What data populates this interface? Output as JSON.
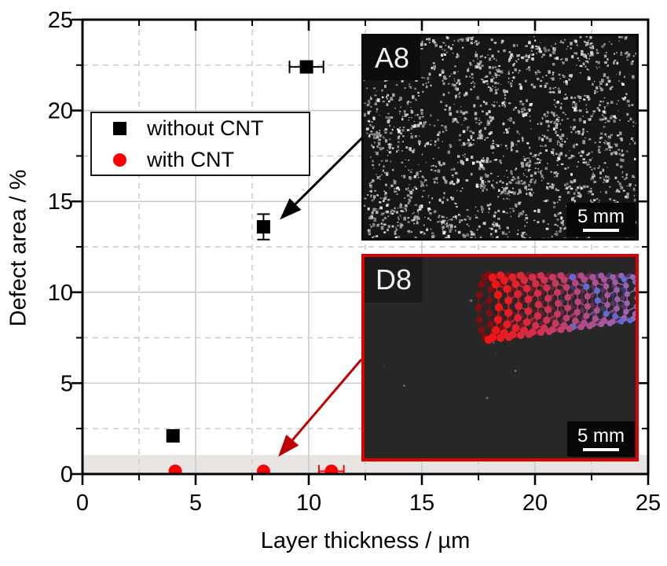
{
  "chart_data": {
    "type": "scatter",
    "title": "",
    "xlabel": "Layer thickness / µm",
    "ylabel": "Defect area / %",
    "xlim": [
      0,
      25
    ],
    "ylim": [
      0,
      25
    ],
    "x_ticks": [
      0,
      5,
      10,
      15,
      20,
      25
    ],
    "y_ticks": [
      0,
      5,
      10,
      15,
      20,
      25
    ],
    "minor_tick_step": 2.5,
    "grid": {
      "major_style": "solid",
      "minor_style": "dashed",
      "color": "#c9c9c9"
    },
    "legend_position": "upper-left",
    "series": [
      {
        "name": "without CNT",
        "marker": "square",
        "color": "#000000",
        "points": [
          {
            "x": 4.0,
            "y": 2.1
          },
          {
            "x": 8.0,
            "y": 13.6,
            "yerr": 0.7
          },
          {
            "x": 9.9,
            "y": 22.4,
            "xerr": 0.75
          }
        ]
      },
      {
        "name": "with CNT",
        "marker": "circle",
        "color": "#ff0000",
        "points": [
          {
            "x": 4.1,
            "y": 0.15
          },
          {
            "x": 8.0,
            "y": 0.15
          },
          {
            "x": 11.0,
            "y": 0.15,
            "xerr": 0.55
          }
        ]
      }
    ],
    "highlight_band": {
      "y_from": 0,
      "y_to": 1.05,
      "color": "#e9e5e3"
    },
    "annotations": [
      {
        "type": "arrow",
        "color": "#000000",
        "from_xy": [
          12.36,
          18.5
        ],
        "to_xy": [
          8.72,
          14.0
        ]
      },
      {
        "type": "arrow",
        "color": "#c00000",
        "from_xy": [
          12.33,
          6.31
        ],
        "to_xy": [
          8.65,
          0.95
        ]
      }
    ]
  },
  "insets": [
    {
      "label": "A8",
      "scale_bar_label": "5 mm",
      "border_color": "#0a0a0a"
    },
    {
      "label": "D8",
      "scale_bar_label": "5 mm",
      "border_color": "#dd0000"
    }
  ]
}
